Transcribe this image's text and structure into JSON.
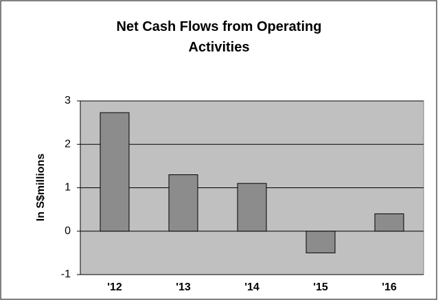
{
  "chart_data": {
    "type": "bar",
    "title": "Net Cash Flows from Operating Activities",
    "y_label": "In S$millions",
    "categories": [
      "'12",
      "'13",
      "'14",
      "'15",
      "'16"
    ],
    "values": [
      2.73,
      1.3,
      1.1,
      -0.5,
      0.4
    ],
    "color": "#8c8c8c",
    "ylim": [
      -1,
      3
    ],
    "yticks": [
      -1,
      0,
      1,
      2,
      3
    ],
    "grid": true
  }
}
